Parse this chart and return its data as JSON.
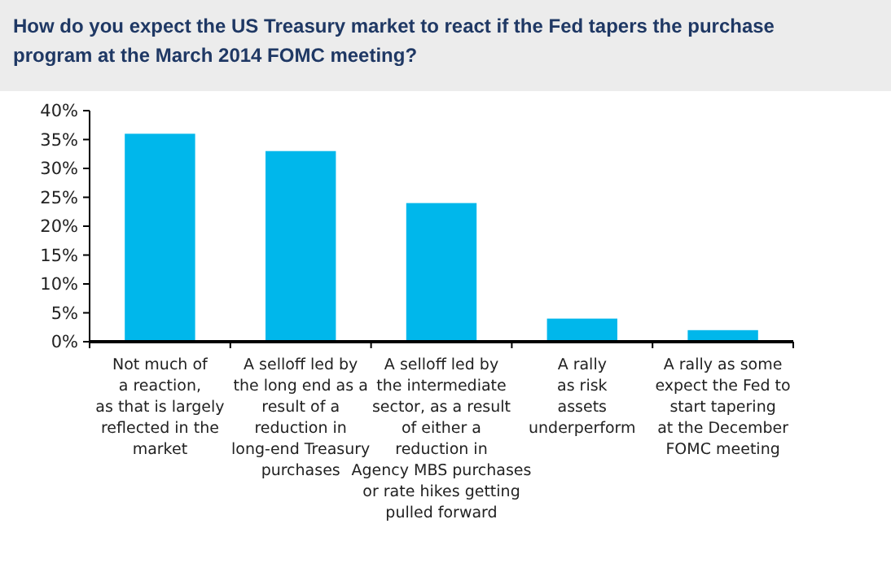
{
  "chart_data": {
    "type": "bar",
    "title": "How do you expect the US Treasury market to react if the Fed tapers the purchase program at the March 2014 FOMC meeting?",
    "categories": [
      "Not much of\na reaction,\nas that is largely\nreflected in the\nmarket",
      "A selloff led by\nthe long end as a\nresult of a\nreduction in\nlong-end Treasury\npurchases",
      "A selloff led by\nthe intermediate\nsector, as a result\nof either a\nreduction in\nAgency MBS purchases\nor rate hikes getting\npulled forward",
      "A rally\nas risk\nassets\nunderperform",
      "A rally as some\nexpect the Fed to\nstart tapering\nat the December\nFOMC meeting"
    ],
    "values": [
      36,
      33,
      24,
      4,
      2
    ],
    "color": "#00b7eb",
    "ylim": [
      0,
      40
    ],
    "yticks": [
      {
        "value": 0,
        "label": "0%"
      },
      {
        "value": 5,
        "label": "5%"
      },
      {
        "value": 10,
        "label": "10%"
      },
      {
        "value": 15,
        "label": "15%"
      },
      {
        "value": 20,
        "label": "20%"
      },
      {
        "value": 25,
        "label": "25%"
      },
      {
        "value": 30,
        "label": "30%"
      },
      {
        "value": 35,
        "label": "35%"
      },
      {
        "value": 40,
        "label": "40%"
      }
    ],
    "grid": false
  }
}
